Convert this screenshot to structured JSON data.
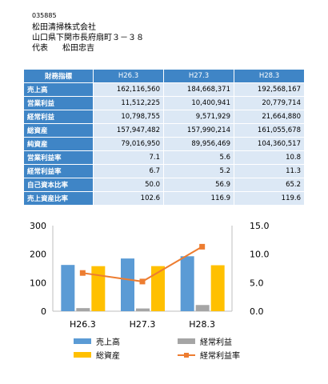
{
  "company": {
    "code": "035885",
    "name": "松田清掃株式会社",
    "address": "山口県下関市長府扇町３－３８",
    "rep_title": "代表",
    "rep_name": "松田忠吉"
  },
  "table": {
    "header": [
      "財務指標",
      "H26.3",
      "H27.3",
      "H28.3"
    ],
    "rows": [
      {
        "label": "売上高",
        "values": [
          "162,116,560",
          "184,668,371",
          "192,568,167"
        ]
      },
      {
        "label": "営業利益",
        "values": [
          "11,512,225",
          "10,400,941",
          "20,779,714"
        ]
      },
      {
        "label": "経常利益",
        "values": [
          "10,798,755",
          "9,571,929",
          "21,664,880"
        ]
      },
      {
        "label": "総資産",
        "values": [
          "157,947,482",
          "157,990,214",
          "161,055,678"
        ]
      },
      {
        "label": "純資産",
        "values": [
          "79,016,950",
          "89,956,469",
          "104,360,517"
        ]
      },
      {
        "label": "営業利益率",
        "values": [
          "7.1",
          "5.6",
          "10.8"
        ]
      },
      {
        "label": "経常利益率",
        "values": [
          "6.7",
          "5.2",
          "11.3"
        ]
      },
      {
        "label": "自己資本比率",
        "values": [
          "50.0",
          "56.9",
          "65.2"
        ]
      },
      {
        "label": "売上資産比率",
        "values": [
          "102.6",
          "116.9",
          "119.6"
        ]
      }
    ]
  },
  "chart_data": {
    "type": "bar",
    "categories": [
      "H26.3",
      "H27.3",
      "H28.3"
    ],
    "series": [
      {
        "name": "売上高",
        "kind": "bar",
        "axis": "left",
        "color": "#5b9bd5",
        "values": [
          162.1,
          184.7,
          192.6
        ]
      },
      {
        "name": "経常利益",
        "kind": "bar",
        "axis": "left",
        "color": "#a5a5a5",
        "values": [
          10.8,
          9.6,
          21.7
        ]
      },
      {
        "name": "総資産",
        "kind": "bar",
        "axis": "left",
        "color": "#ffc000",
        "values": [
          157.9,
          158.0,
          161.1
        ]
      },
      {
        "name": "経常利益率",
        "kind": "line",
        "axis": "right",
        "color": "#ed7d31",
        "values": [
          6.7,
          5.2,
          11.3
        ]
      }
    ],
    "y_left": {
      "min": 0,
      "max": 300,
      "ticks": [
        "0",
        "100",
        "200",
        "300"
      ]
    },
    "y_right": {
      "min": 0,
      "max": 15,
      "ticks": [
        "0.0",
        "5.0",
        "10.0",
        "15.0"
      ]
    },
    "grid": false,
    "legend_position": "bottom"
  }
}
